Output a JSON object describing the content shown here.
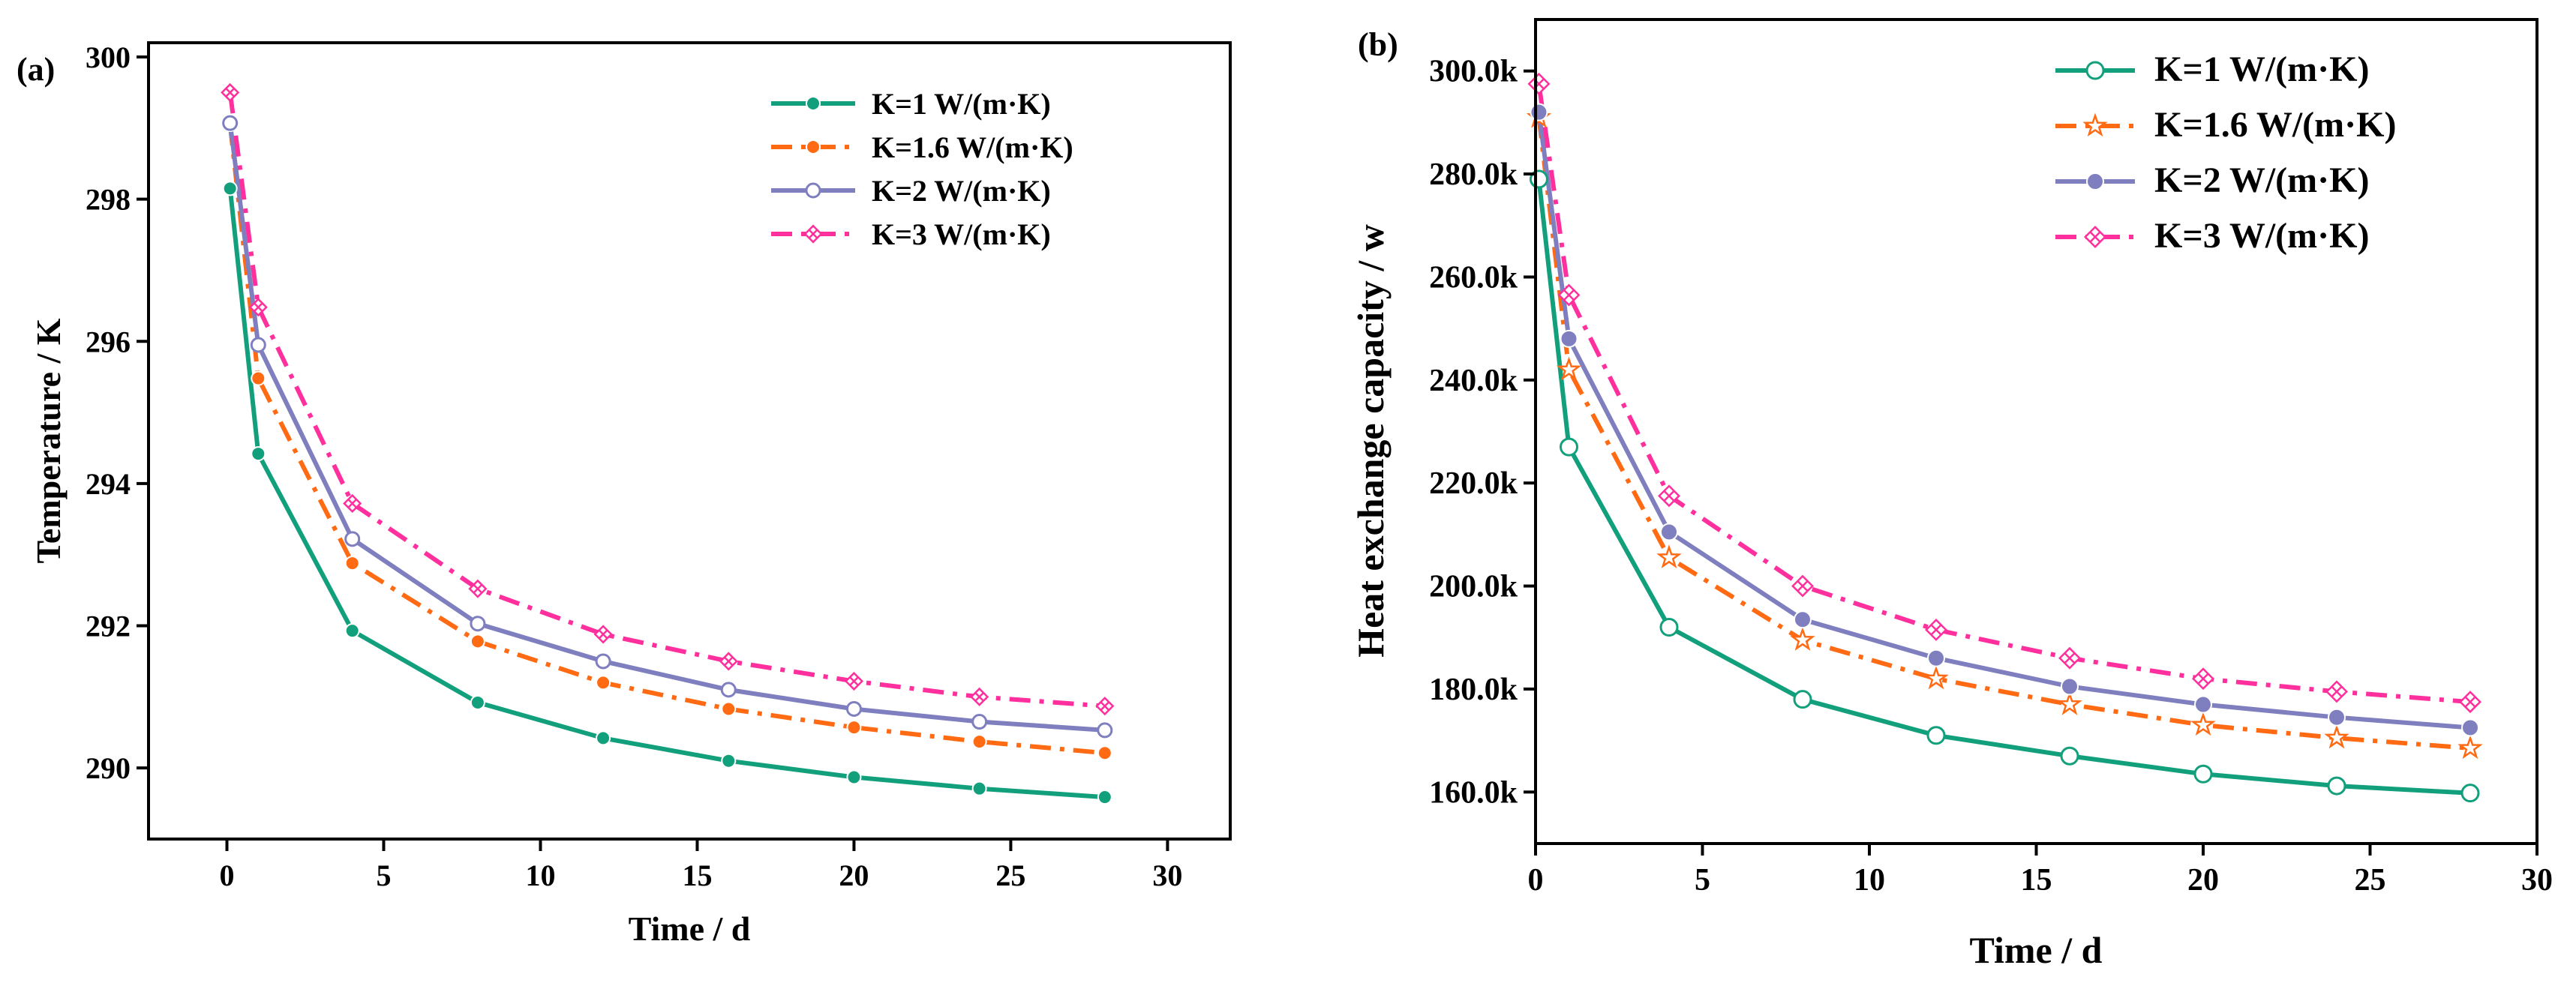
{
  "chart_data": [
    {
      "type": "line",
      "panel_label": "(a)",
      "xlabel": "Time / d",
      "ylabel": "Temperature / K",
      "xlim": [
        -2.5,
        32
      ],
      "ylim": [
        289,
        300.2
      ],
      "xticks": [
        0,
        5,
        10,
        15,
        20,
        25,
        30
      ],
      "yticks": [
        290,
        292,
        294,
        296,
        298,
        300
      ],
      "ytick_labels": [
        "290",
        "292",
        "294",
        "296",
        "298",
        "300"
      ],
      "legend_position": "top-right",
      "x": [
        0.1,
        1,
        4,
        8,
        12,
        16,
        20,
        24,
        28
      ],
      "series": [
        {
          "name": "K=1 W/(m·K)",
          "color": "#12a07c",
          "dash": "solid",
          "marker": "filled-circle",
          "values": [
            298.15,
            294.42,
            291.93,
            290.92,
            290.42,
            290.1,
            289.87,
            289.71,
            289.59
          ]
        },
        {
          "name": "K=1.6 W/(m·K)",
          "color": "#ff6a13",
          "dash": "dashdot",
          "marker": "filled-circle",
          "values": [
            299.05,
            295.48,
            292.88,
            291.78,
            291.2,
            290.83,
            290.57,
            290.37,
            290.21
          ]
        },
        {
          "name": "K=2 W/(m·K)",
          "color": "#7f7fc0",
          "dash": "solid",
          "marker": "open-circle",
          "values": [
            299.07,
            295.95,
            293.22,
            292.03,
            291.5,
            291.1,
            290.83,
            290.65,
            290.53
          ]
        },
        {
          "name": "K=3 W/(m·K)",
          "color": "#ff2f9d",
          "dash": "dashdot",
          "marker": "crossed-diamond",
          "values": [
            299.5,
            296.48,
            293.72,
            292.52,
            291.88,
            291.5,
            291.22,
            291.0,
            290.87
          ]
        }
      ]
    },
    {
      "type": "line",
      "panel_label": "(b)",
      "xlabel": "Time / d",
      "ylabel": "Heat exchange capacity / w",
      "xlim": [
        0,
        30
      ],
      "ylim": [
        150000,
        310000
      ],
      "xticks": [
        0,
        5,
        10,
        15,
        20,
        25,
        30
      ],
      "yticks": [
        160000,
        180000,
        200000,
        220000,
        240000,
        260000,
        280000,
        300000
      ],
      "ytick_labels": [
        "160.0k",
        "180.0k",
        "200.0k",
        "220.0k",
        "240.0k",
        "260.0k",
        "280.0k",
        "300.0k"
      ],
      "legend_position": "top-right",
      "x": [
        0.1,
        1,
        4,
        8,
        12,
        16,
        20,
        24,
        28
      ],
      "series": [
        {
          "name": "K=1 W/(m·K)",
          "color": "#12a07c",
          "dash": "solid",
          "marker": "open-circle",
          "values": [
            279000,
            227000,
            192000,
            178000,
            171000,
            167000,
            163500,
            161200,
            159800
          ]
        },
        {
          "name": "K=1.6 W/(m·K)",
          "color": "#ff6a13",
          "dash": "dashdot",
          "marker": "open-star",
          "values": [
            291000,
            242000,
            205500,
            189500,
            182000,
            177000,
            173000,
            170500,
            168500
          ]
        },
        {
          "name": "K=2 W/(m·K)",
          "color": "#7f7fc0",
          "dash": "solid",
          "marker": "filled-circle",
          "values": [
            292000,
            248000,
            210500,
            193500,
            186000,
            180500,
            177000,
            174500,
            172500
          ]
        },
        {
          "name": "K=3 W/(m·K)",
          "color": "#ff2f9d",
          "dash": "dashdot",
          "marker": "crossed-diamond",
          "values": [
            297500,
            256500,
            217500,
            200000,
            191500,
            186000,
            182000,
            179500,
            177500
          ]
        }
      ]
    }
  ]
}
